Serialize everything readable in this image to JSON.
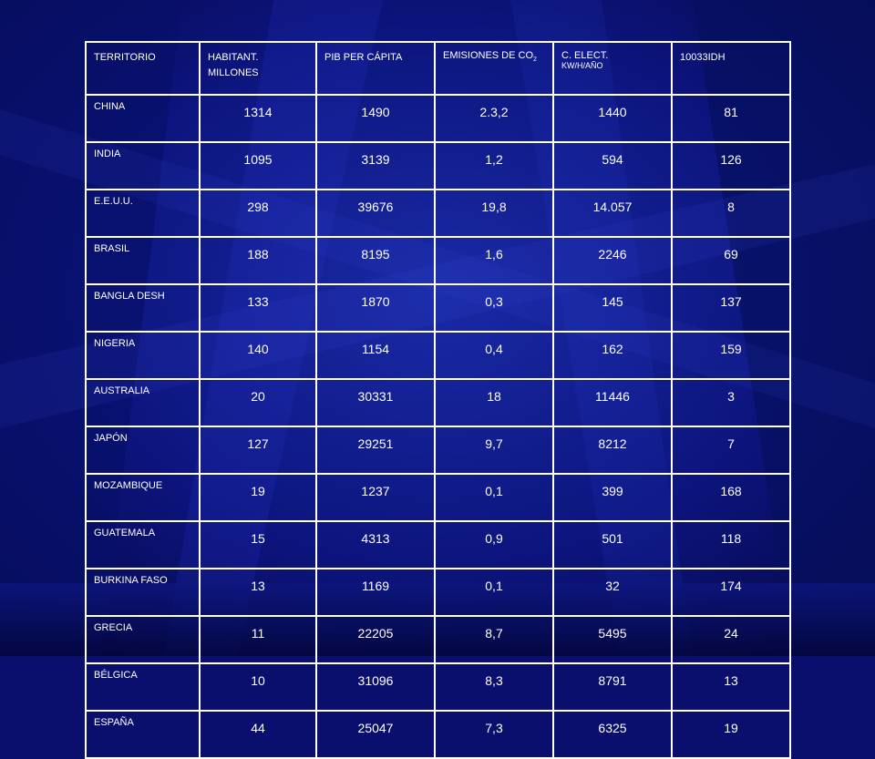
{
  "table": {
    "headers": {
      "territorio": "TERRITORIO",
      "habitant_line1": "HABITANT.",
      "habitant_line2": "MILLONES",
      "pib": "PIB PER CÁPITA",
      "emisiones_main": "EMISIONES DE CO",
      "emisiones_sub": "2",
      "elect_line1": "C. ELECT.",
      "elect_line2": "KW/H/AÑO",
      "idh": "10033IDH"
    },
    "rows": [
      {
        "territorio": "CHINA",
        "habitantes": "1314",
        "pib": "1490",
        "emisiones": "2.3,2",
        "electricidad": "1440",
        "idh": "81"
      },
      {
        "territorio": "INDIA",
        "habitantes": "1095",
        "pib": "3139",
        "emisiones": "1,2",
        "electricidad": "594",
        "idh": "126"
      },
      {
        "territorio": "E.E.U.U.",
        "habitantes": "298",
        "pib": "39676",
        "emisiones": "19,8",
        "electricidad": "14.057",
        "idh": "8"
      },
      {
        "territorio": "BRASIL",
        "habitantes": "188",
        "pib": "8195",
        "emisiones": "1,6",
        "electricidad": "2246",
        "idh": "69"
      },
      {
        "territorio": "BANGLA DESH",
        "habitantes": "133",
        "pib": "1870",
        "emisiones": "0,3",
        "electricidad": "145",
        "idh": "137"
      },
      {
        "territorio": "NIGERIA",
        "habitantes": "140",
        "pib": "1154",
        "emisiones": "0,4",
        "electricidad": "162",
        "idh": "159"
      },
      {
        "territorio": "AUSTRALIA",
        "habitantes": "20",
        "pib": "30331",
        "emisiones": "18",
        "electricidad": "11446",
        "idh": "3"
      },
      {
        "territorio": "JAPÓN",
        "habitantes": "127",
        "pib": "29251",
        "emisiones": "9,7",
        "electricidad": "8212",
        "idh": "7"
      },
      {
        "territorio": "MOZAMBIQUE",
        "habitantes": "19",
        "pib": "1237",
        "emisiones": "0,1",
        "electricidad": "399",
        "idh": "168"
      },
      {
        "territorio": "GUATEMALA",
        "habitantes": "15",
        "pib": "4313",
        "emisiones": "0,9",
        "electricidad": "501",
        "idh": "118"
      },
      {
        "territorio": "BURKINA FASO",
        "habitantes": "13",
        "pib": "1169",
        "emisiones": "0,1",
        "electricidad": "32",
        "idh": "174"
      },
      {
        "territorio": "GRECIA",
        "habitantes": "11",
        "pib": "22205",
        "emisiones": "8,7",
        "electricidad": "5495",
        "idh": "24"
      },
      {
        "territorio": "BÉLGICA",
        "habitantes": "10",
        "pib": "31096",
        "emisiones": "8,3",
        "electricidad": "8791",
        "idh": "13"
      },
      {
        "territorio": "ESPAÑA",
        "habitantes": "44",
        "pib": "25047",
        "emisiones": "7,3",
        "electricidad": "6325",
        "idh": "19"
      }
    ]
  },
  "colors": {
    "background": "#0a0f6e",
    "grid": "#ffffff",
    "text": "#ffffff"
  }
}
